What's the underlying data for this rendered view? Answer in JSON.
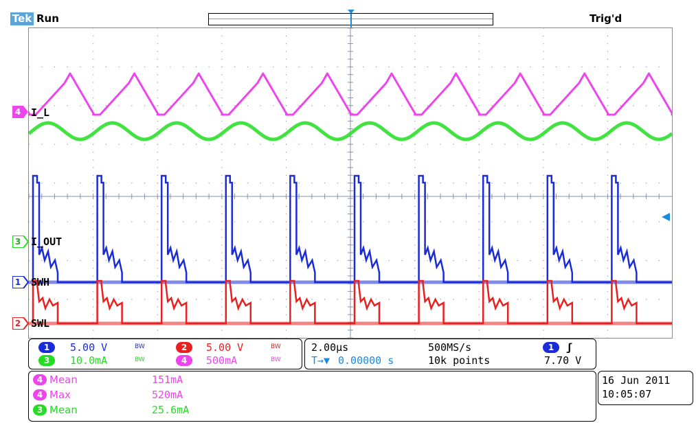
{
  "header": {
    "brand": "Tek",
    "status": "Run",
    "trigger_status": "Trig'd"
  },
  "colors": {
    "ch1": "#1a2bd8",
    "ch2": "#e82020",
    "ch3": "#22dd22",
    "ch4": "#ee44ee",
    "brand": "#5aa6d6"
  },
  "channels": {
    "ch4_label": "I_L",
    "ch3_label": "I_OUT",
    "ch1_label": "SWH",
    "ch2_label": "SWL",
    "ch1_num": "1",
    "ch2_num": "2",
    "ch3_num": "3",
    "ch4_num": "4"
  },
  "trigger_marker": "T",
  "scales": {
    "ch1": "5.00 V",
    "ch2": "5.00 V",
    "ch3": "10.0mA",
    "ch4": "500mA",
    "bw": "BW"
  },
  "timebase": {
    "scale": "2.00µs",
    "sample_rate": "500MS/s",
    "position": "0.00000 s",
    "position_prefix": "T→▼",
    "record_length": "10k points",
    "trigger_source": "1",
    "trigger_slope": "ʃ",
    "trigger_level": "7.70 V"
  },
  "measurements": [
    {
      "ch": "4",
      "name": "Mean",
      "value": "151mA"
    },
    {
      "ch": "4",
      "name": "Max",
      "value": "520mA"
    },
    {
      "ch": "3",
      "name": "Mean",
      "value": "25.6mA"
    }
  ],
  "datetime": {
    "date": "16 Jun  2011",
    "time": "10:05:07"
  }
}
